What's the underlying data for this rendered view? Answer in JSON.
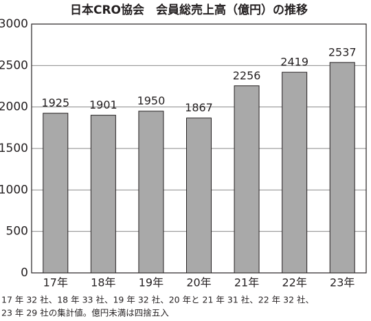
{
  "chart_data": {
    "type": "bar",
    "title": "日本CRO協会　会員総売上高（億円）の推移",
    "categories": [
      "17年",
      "18年",
      "19年",
      "20年",
      "21年",
      "22年",
      "23年"
    ],
    "values": [
      1925,
      1901,
      1950,
      1867,
      2256,
      2419,
      2537
    ],
    "color": "#a9a9a9",
    "ylim": [
      0,
      3000
    ],
    "yticks": [
      0,
      500,
      1000,
      1500,
      2000,
      2500,
      3000
    ],
    "grid": true,
    "notes": [
      "17 年 32 社、18 年 33 社、19 年 32 社、20 年と 21 年 31 社、22 年 32 社、",
      "23 年 29 社の集計値。億円未満は四捨五入"
    ]
  }
}
